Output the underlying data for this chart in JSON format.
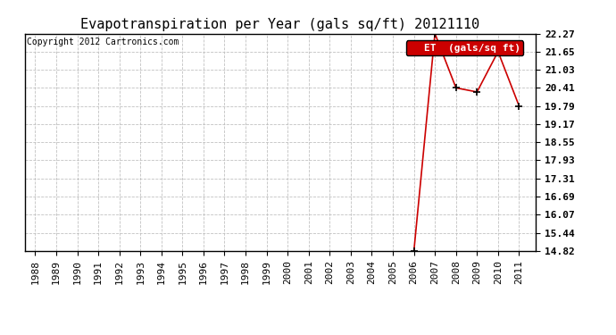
{
  "title": "Evapotranspiration per Year (gals sq/ft) 20121110",
  "copyright": "Copyright 2012 Cartronics.com",
  "legend_label": "ET  (gals/sq ft)",
  "x_years": [
    1988,
    1989,
    1990,
    1991,
    1992,
    1993,
    1994,
    1995,
    1996,
    1997,
    1998,
    1999,
    2000,
    2001,
    2002,
    2003,
    2004,
    2005,
    2006,
    2007,
    2008,
    2009,
    2010,
    2011
  ],
  "y_values": [
    null,
    null,
    null,
    null,
    null,
    null,
    null,
    null,
    null,
    null,
    null,
    null,
    null,
    null,
    null,
    null,
    null,
    null,
    14.82,
    22.27,
    20.41,
    20.27,
    21.65,
    19.79
  ],
  "yticks": [
    14.82,
    15.44,
    16.07,
    16.69,
    17.31,
    17.93,
    18.55,
    19.17,
    19.79,
    20.41,
    21.03,
    21.65,
    22.27
  ],
  "ylim_min": 14.82,
  "ylim_max": 22.27,
  "line_color": "#cc0000",
  "marker": "+",
  "marker_color": "#000000",
  "marker_size": 6,
  "background_color": "#ffffff",
  "grid_color": "#bbbbbb",
  "title_fontsize": 11,
  "copyright_fontsize": 7,
  "tick_fontsize": 8,
  "legend_bg": "#cc0000",
  "legend_fg": "#ffffff",
  "legend_fontsize": 8
}
